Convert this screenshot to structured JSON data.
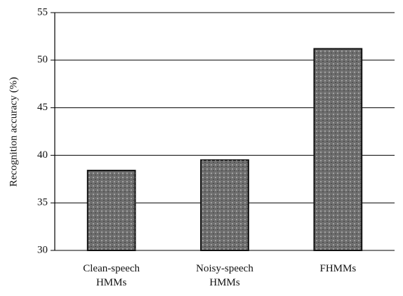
{
  "chart_data": {
    "type": "bar",
    "y_label": "Recognition accuracy (%)",
    "categories": [
      "Clean-speech\nHMMs",
      "Noisy-speech\nHMMs",
      "FHMMs"
    ],
    "values": [
      38.4,
      39.5,
      51.2
    ],
    "color": "#6e6e6e",
    "ylim": [
      30,
      55
    ],
    "yticks": [
      30,
      35,
      40,
      45,
      50,
      55
    ],
    "grid": true
  }
}
